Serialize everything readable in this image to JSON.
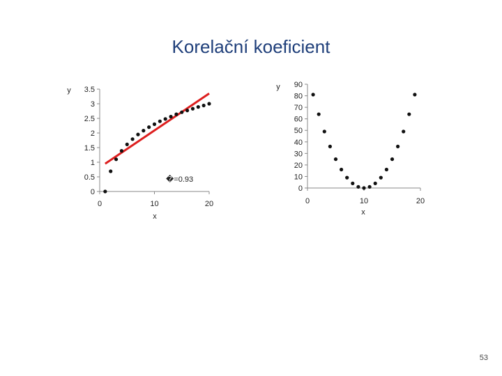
{
  "slide": {
    "title": "Korelační koeficient",
    "page_number": "53"
  },
  "chart_data": [
    {
      "type": "scatter",
      "xlabel": "x",
      "ylabel": "y",
      "xlim": [
        0,
        20
      ],
      "ylim": [
        0,
        3.5
      ],
      "x_ticks": [
        "0",
        "10",
        "20"
      ],
      "y_ticks": [
        "0",
        "0.5",
        "1",
        "1.5",
        "2",
        "2.5",
        "3",
        "3.5"
      ],
      "annotation": "�=0.93",
      "fit_line": {
        "color": "#dd1f1f",
        "x": [
          1,
          20
        ],
        "y": [
          0.95,
          3.35
        ]
      },
      "marker_color": "#111111",
      "x": [
        1,
        2,
        3,
        4,
        5,
        6,
        7,
        8,
        9,
        10,
        11,
        12,
        13,
        14,
        15,
        16,
        17,
        18,
        19,
        20
      ],
      "y": [
        0.0,
        0.69,
        1.1,
        1.39,
        1.61,
        1.79,
        1.95,
        2.08,
        2.2,
        2.3,
        2.4,
        2.48,
        2.56,
        2.64,
        2.71,
        2.77,
        2.83,
        2.89,
        2.94,
        3.0
      ]
    },
    {
      "type": "scatter",
      "xlabel": "x",
      "ylabel": "y",
      "xlim": [
        0,
        20
      ],
      "ylim": [
        0,
        90
      ],
      "x_ticks": [
        "0",
        "10",
        "20"
      ],
      "y_ticks": [
        "0",
        "10",
        "20",
        "30",
        "40",
        "50",
        "60",
        "70",
        "80",
        "90"
      ],
      "marker_color": "#111111",
      "x": [
        1,
        2,
        3,
        4,
        5,
        6,
        7,
        8,
        9,
        10,
        11,
        12,
        13,
        14,
        15,
        16,
        17,
        18,
        19
      ],
      "y": [
        81,
        64,
        49,
        36,
        25,
        16,
        9,
        4,
        1,
        0,
        1,
        4,
        9,
        16,
        25,
        36,
        49,
        64,
        81
      ]
    }
  ]
}
